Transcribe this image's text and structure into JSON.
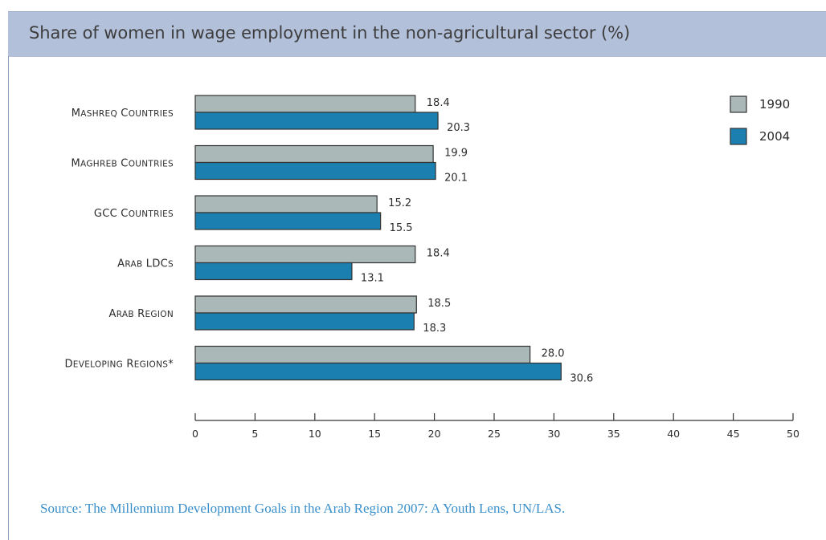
{
  "header": {
    "title": "Share of women in wage employment in the non-agricultural sector (%)"
  },
  "source": "Source:  The Millennium Development Goals in the Arab Region 2007: A Youth Lens, UN/LAS.",
  "colors": {
    "series_1990": "#aab8b8",
    "series_2004": "#1b7fb0",
    "bar_border": "#333333",
    "header_bg": "#b3c0da",
    "source_text": "#3a8fcb"
  },
  "chart_data": {
    "type": "bar",
    "orientation": "horizontal",
    "title": "Share of women in wage employment in the non-agricultural sector (%)",
    "categories": [
      "Mashreq Countries",
      "Maghreb Countries",
      "GCC Countries",
      "Arab LDCs",
      "Arab Region",
      "Developing Regions*"
    ],
    "series": [
      {
        "name": "1990",
        "values": [
          18.4,
          19.9,
          15.2,
          18.4,
          18.5,
          28.0
        ],
        "labels": [
          "18.4",
          "19.9",
          "15.2",
          "18.4",
          "18.5",
          "28.0"
        ]
      },
      {
        "name": "2004",
        "values": [
          20.3,
          20.1,
          15.5,
          13.1,
          18.3,
          30.6
        ],
        "labels": [
          "20.3",
          "20.1",
          "15.5",
          "13.1",
          "18.3",
          "30.6"
        ]
      }
    ],
    "xlim": [
      0,
      50
    ],
    "xticks": [
      "0",
      "5",
      "10",
      "15",
      "20",
      "25",
      "30",
      "35",
      "40",
      "45",
      "50"
    ],
    "legend_position": "top-right",
    "grid": false
  }
}
